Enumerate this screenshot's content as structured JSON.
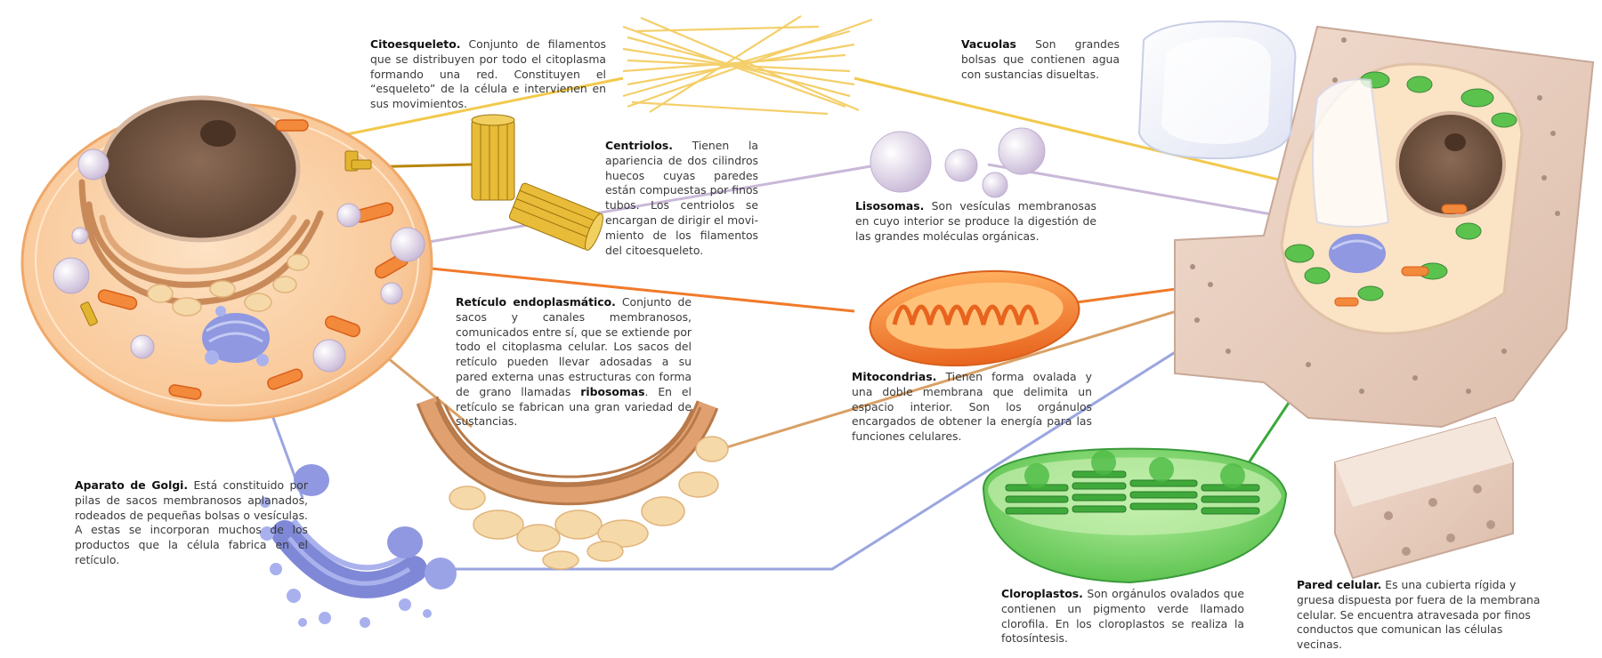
{
  "labels": {
    "citoesqueleto": {
      "title": "Citoesqueleto.",
      "text": "Conjunto de filamentos que se distribuyen por todo el citoplasma formando una red. Constituyen el “esqueleto” de la célula e intervienen en sus movimientos."
    },
    "centriolos": {
      "title": "Centriolos.",
      "text": "Tienen la aparien­cia de dos cilindros huecos cu­yas paredes están compuestas por finos tubos. Los centriolos se encargan de dirigir el movi­miento de los filamentos del citoesqueleto."
    },
    "vacuolas": {
      "title": "Vacuolas",
      "text": "Son grandes bolsas que contienen agua con sus­tancias disueltas."
    },
    "lisosomas": {
      "title": "Lisosomas.",
      "text": "Son vesículas membranosas en cuyo interior se produce la digestión de las grandes moléculas orgánicas."
    },
    "reticulo": {
      "title": "Retículo endoplasmático.",
      "text1": "Conjunto de sacos y canales membranosos, comunicados entre sí, que se extiende por todo el citoplasma celular. Los sacos del retículo pueden llevar adosadas a su pared externa unas estructuras con forma de grano llamadas",
      "bold": "ribosomas",
      "text2": ". En el retículo se fabrican una gran variedad de sustancias."
    },
    "mitocondrias": {
      "title": "Mitocondrias.",
      "text": "Tienen forma ovalada y una doble membrana que delimita un espacio inte­rior. Son los orgánulos encargados de obtener la energía para las funciones celulares."
    },
    "golgi": {
      "title": "Aparato de Golgi.",
      "text": "Está constituido por pilas de sacos membranosos aplanados, rodeados de pequeñas bolsas o vesículas. A estas se in­corporan muchos de los productos que la célula fabrica en el retículo."
    },
    "cloroplastos": {
      "title": "Cloroplastos.",
      "text": "Son orgánulos ovalados que contienen un pigmento verde llamado clorofi­la. En los cloroplastos se realiza la fotosíntesis."
    },
    "pared": {
      "title": "Pared celular.",
      "text": "Es una cubierta rígida y gruesa dispuesta por fuera de la membrana celular. Se encuentra atravesada por finos conductos que comunican las células vecinas."
    }
  },
  "colors": {
    "citoesqueleto_line": "#f2c94c",
    "centriolo_line": "#b8860b",
    "lisosoma_line": "#c9b8d8",
    "reticulo_line": "#d9a066",
    "mitocondria_line": "#f07a2a",
    "golgi_line": "#9aa6e0",
    "cloroplasto_line": "#3aa83a",
    "pared_line": "#7a6a5a"
  }
}
